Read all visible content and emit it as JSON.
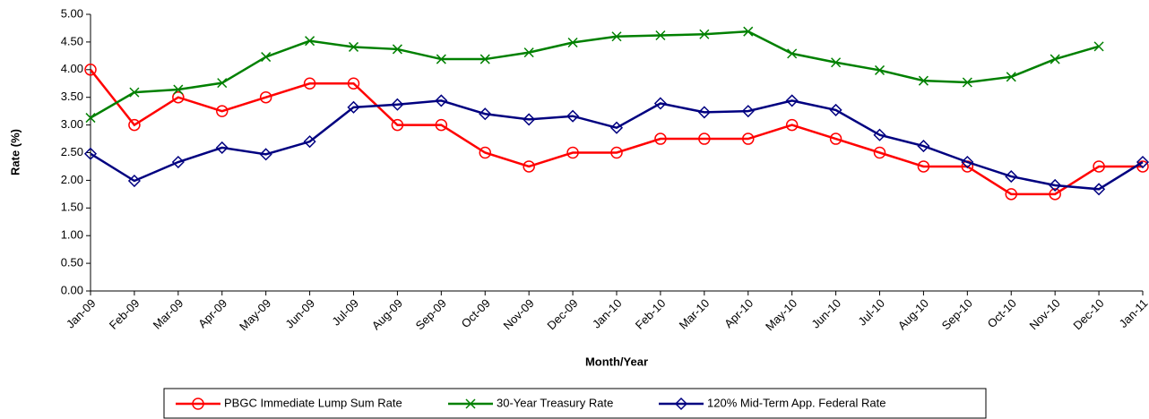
{
  "chart_data": {
    "type": "line",
    "x_label": "Month/Year",
    "y_label": "Rate (%)",
    "categories": [
      "Jan-09",
      "Feb-09",
      "Mar-09",
      "Apr-09",
      "May-09",
      "Jun-09",
      "Jul-09",
      "Aug-09",
      "Sep-09",
      "Oct-09",
      "Nov-09",
      "Dec-09",
      "Jan-10",
      "Feb-10",
      "Mar-10",
      "Apr-10",
      "May-10",
      "Jun-10",
      "Jul-10",
      "Aug-10",
      "Sep-10",
      "Oct-10",
      "Nov-10",
      "Dec-10",
      "Jan-11"
    ],
    "series": [
      {
        "name": "PBGC Immediate Lump Sum Rate",
        "color": "#ff0000",
        "marker": "circle",
        "values": [
          4.0,
          3.0,
          3.5,
          3.25,
          3.5,
          3.75,
          3.75,
          3.0,
          3.0,
          2.5,
          2.25,
          2.5,
          2.5,
          2.75,
          2.75,
          2.75,
          3.0,
          2.75,
          2.5,
          2.25,
          2.25,
          1.75,
          1.75,
          2.25,
          2.25
        ]
      },
      {
        "name": "30-Year Treasury Rate",
        "color": "#008000",
        "marker": "x",
        "values": [
          3.13,
          3.59,
          3.64,
          3.76,
          4.23,
          4.52,
          4.41,
          4.37,
          4.19,
          4.19,
          4.31,
          4.49,
          4.6,
          4.62,
          4.64,
          4.69,
          4.29,
          4.13,
          3.99,
          3.8,
          3.77,
          3.87,
          4.19,
          4.42,
          null
        ]
      },
      {
        "name": "120% Mid-Term App. Federal Rate",
        "color": "#000080",
        "marker": "diamond",
        "values": [
          2.48,
          1.99,
          2.33,
          2.59,
          2.47,
          2.7,
          3.32,
          3.37,
          3.44,
          3.2,
          3.1,
          3.16,
          2.95,
          3.39,
          3.23,
          3.25,
          3.44,
          3.27,
          2.82,
          2.62,
          2.33,
          2.07,
          1.91,
          1.84,
          2.33
        ]
      }
    ],
    "ylim": [
      0,
      5
    ],
    "yticks": [
      {
        "value": 0,
        "label": "0.00"
      },
      {
        "value": 0.5,
        "label": "0.50"
      },
      {
        "value": 1,
        "label": "1.00"
      },
      {
        "value": 1.5,
        "label": "1.50"
      },
      {
        "value": 2,
        "label": "2.00"
      },
      {
        "value": 2.5,
        "label": "2.50"
      },
      {
        "value": 3,
        "label": "3.00"
      },
      {
        "value": 3.5,
        "label": "3.50"
      },
      {
        "value": 4,
        "label": "4.00"
      },
      {
        "value": 4.5,
        "label": "4.50"
      },
      {
        "value": 5,
        "label": "5.00"
      }
    ],
    "grid": false,
    "legend": "bottom"
  }
}
